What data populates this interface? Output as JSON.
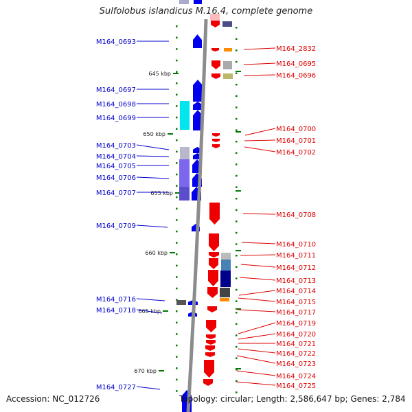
{
  "title": "Sulfolobus islandicus M.16.4, complete genome",
  "footer": {
    "accession": "Accession: NC_012726",
    "summary": "Topology: circular; Length: 2,586,647 bp; Genes: 2,784"
  },
  "colors": {
    "backbone": "#8c8c8c",
    "forward_cds": "#0000ee",
    "reverse_cds": "#ee0000",
    "left_label": "#0000cc",
    "right_label": "#dd0000",
    "tick": "#007700"
  },
  "scale_labels": [
    "645 kbp",
    "650 kbp",
    "655 kbp",
    "660 kbp",
    "665 kbp",
    "670 kbp"
  ],
  "left_genes": [
    "M164_0693",
    "M164_0697",
    "M164_0698",
    "M164_0699",
    "M164_0703",
    "M164_0704",
    "M164_0705",
    "M164_0706",
    "M164_0707",
    "M164_0709",
    "M164_0716",
    "M164_0718",
    "M164_0727"
  ],
  "right_genes": [
    "M164_2832",
    "M164_0695",
    "M164_0696",
    "M164_0700",
    "M164_0701",
    "M164_0702",
    "M164_0708",
    "M164_0710",
    "M164_0711",
    "M164_0712",
    "M164_0713",
    "M164_0714",
    "M164_0715",
    "M164_0717",
    "M164_0719",
    "M164_0720",
    "M164_0721",
    "M164_0722",
    "M164_0723",
    "M164_0724",
    "M164_0725"
  ]
}
